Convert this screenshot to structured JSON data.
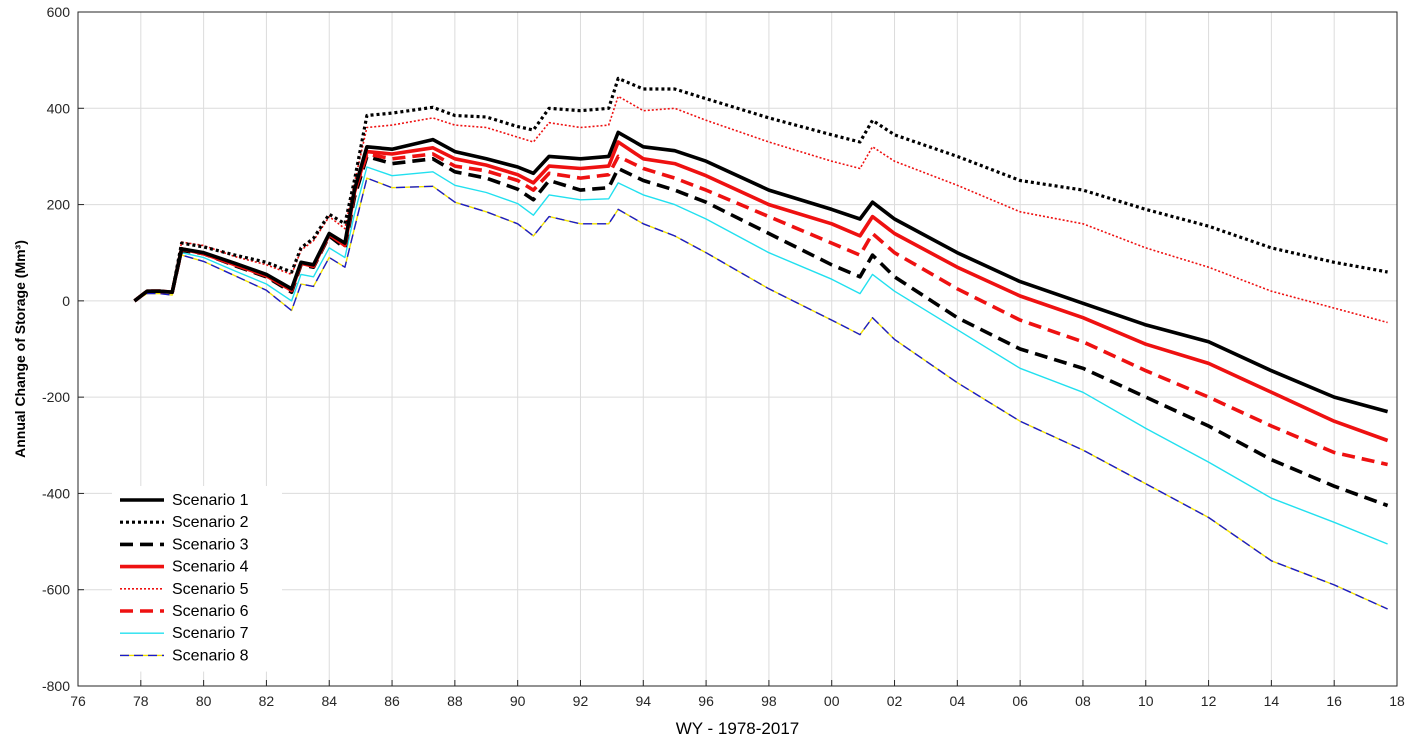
{
  "chart_data": {
    "type": "line",
    "title": "",
    "xlabel": "WY - 1978-2017",
    "ylabel": "Annual Change of Storage (Mm³)",
    "xlim": [
      1976,
      2018
    ],
    "ylim": [
      -800,
      600
    ],
    "grid": true,
    "legend_position": "bottom-left",
    "x_ticks": [
      {
        "value": 1976,
        "label": "76"
      },
      {
        "value": 1978,
        "label": "78"
      },
      {
        "value": 1980,
        "label": "80"
      },
      {
        "value": 1982,
        "label": "82"
      },
      {
        "value": 1984,
        "label": "84"
      },
      {
        "value": 1986,
        "label": "86"
      },
      {
        "value": 1988,
        "label": "88"
      },
      {
        "value": 1990,
        "label": "90"
      },
      {
        "value": 1992,
        "label": "92"
      },
      {
        "value": 1994,
        "label": "94"
      },
      {
        "value": 1996,
        "label": "96"
      },
      {
        "value": 1998,
        "label": "98"
      },
      {
        "value": 2000,
        "label": "00"
      },
      {
        "value": 2002,
        "label": "02"
      },
      {
        "value": 2004,
        "label": "04"
      },
      {
        "value": 2006,
        "label": "06"
      },
      {
        "value": 2008,
        "label": "08"
      },
      {
        "value": 2010,
        "label": "10"
      },
      {
        "value": 2012,
        "label": "12"
      },
      {
        "value": 2014,
        "label": "14"
      },
      {
        "value": 2016,
        "label": "16"
      },
      {
        "value": 2018,
        "label": "18"
      }
    ],
    "y_ticks": [
      {
        "value": 600,
        "label": "600"
      },
      {
        "value": 400,
        "label": "400"
      },
      {
        "value": 200,
        "label": "200"
      },
      {
        "value": 0,
        "label": "0"
      },
      {
        "value": -200,
        "label": "-200"
      },
      {
        "value": -400,
        "label": "-400"
      },
      {
        "value": -600,
        "label": "-600"
      },
      {
        "value": -800,
        "label": "-800"
      }
    ],
    "x": [
      1977.8,
      1978.2,
      1978.6,
      1979.0,
      1979.3,
      1980.0,
      1981.0,
      1982.0,
      1982.8,
      1983.1,
      1983.5,
      1984.0,
      1984.5,
      1984.8,
      1985.2,
      1986.0,
      1987.3,
      1988.0,
      1989.0,
      1990.0,
      1990.5,
      1991.0,
      1992.0,
      1992.9,
      1993.2,
      1994.0,
      1995.0,
      1996.0,
      1998.0,
      2000.0,
      2000.9,
      2001.3,
      2002.0,
      2004.0,
      2006.0,
      2008.0,
      2010.0,
      2012.0,
      2014.0,
      2016.0,
      2017.7
    ],
    "series": [
      {
        "name": "Scenario 1",
        "color": "#000000",
        "width": 3.6,
        "dash": "",
        "values": [
          0,
          20,
          20,
          18,
          108,
          100,
          78,
          55,
          25,
          80,
          75,
          140,
          120,
          230,
          320,
          315,
          335,
          310,
          295,
          278,
          265,
          300,
          295,
          300,
          350,
          320,
          312,
          290,
          230,
          190,
          170,
          205,
          170,
          100,
          40,
          -5,
          -50,
          -85,
          -145,
          -200,
          -230
        ]
      },
      {
        "name": "Scenario 2",
        "color": "#000000",
        "width": 3.2,
        "dash": "3,3",
        "values": [
          0,
          20,
          20,
          18,
          120,
          112,
          95,
          80,
          60,
          110,
          130,
          180,
          160,
          250,
          385,
          390,
          402,
          385,
          382,
          362,
          355,
          400,
          395,
          400,
          462,
          440,
          440,
          420,
          380,
          345,
          330,
          375,
          345,
          300,
          250,
          230,
          190,
          155,
          110,
          80,
          60
        ]
      },
      {
        "name": "Scenario 3",
        "color": "#000000",
        "width": 3.6,
        "dash": "13,7",
        "values": [
          0,
          20,
          20,
          18,
          105,
          98,
          73,
          50,
          18,
          75,
          70,
          135,
          110,
          215,
          300,
          285,
          295,
          268,
          255,
          232,
          210,
          250,
          230,
          235,
          275,
          250,
          230,
          205,
          140,
          75,
          50,
          95,
          50,
          -35,
          -100,
          -140,
          -200,
          -260,
          -330,
          -385,
          -425
        ]
      },
      {
        "name": "Scenario 4",
        "color": "#ee1111",
        "width": 3.6,
        "dash": "",
        "values": [
          0,
          20,
          20,
          18,
          108,
          98,
          75,
          52,
          22,
          78,
          72,
          138,
          115,
          225,
          310,
          305,
          318,
          295,
          282,
          262,
          245,
          280,
          275,
          280,
          330,
          295,
          285,
          260,
          200,
          160,
          135,
          175,
          140,
          70,
          10,
          -35,
          -90,
          -130,
          -190,
          -250,
          -290
        ]
      },
      {
        "name": "Scenario 5",
        "color": "#ee1111",
        "width": 1.6,
        "dash": "2,2",
        "values": [
          0,
          20,
          20,
          18,
          122,
          115,
          92,
          75,
          55,
          105,
          125,
          175,
          150,
          245,
          360,
          365,
          380,
          365,
          360,
          340,
          330,
          370,
          360,
          365,
          425,
          395,
          400,
          375,
          330,
          290,
          275,
          320,
          290,
          240,
          185,
          160,
          110,
          70,
          20,
          -15,
          -45
        ]
      },
      {
        "name": "Scenario 6",
        "color": "#ee1111",
        "width": 3.6,
        "dash": "13,7",
        "values": [
          0,
          20,
          20,
          18,
          108,
          98,
          75,
          52,
          22,
          78,
          72,
          138,
          115,
          225,
          305,
          295,
          305,
          280,
          270,
          250,
          230,
          265,
          255,
          262,
          300,
          275,
          255,
          230,
          175,
          120,
          95,
          140,
          100,
          25,
          -40,
          -85,
          -145,
          -200,
          -260,
          -315,
          -340
        ]
      },
      {
        "name": "Scenario 7",
        "color": "#22e0ef",
        "width": 1.4,
        "dash": "",
        "values": [
          0,
          18,
          18,
          15,
          100,
          90,
          62,
          35,
          0,
          55,
          50,
          110,
          90,
          180,
          278,
          260,
          268,
          240,
          225,
          202,
          178,
          220,
          210,
          212,
          245,
          220,
          200,
          170,
          100,
          45,
          15,
          55,
          20,
          -60,
          -140,
          -190,
          -265,
          -335,
          -410,
          -460,
          -505
        ]
      },
      {
        "name": "Scenario 8",
        "color": "#1a1acc",
        "width": 1.4,
        "dash": "9,5",
        "color2": "#f0e000",
        "values": [
          0,
          15,
          15,
          12,
          95,
          82,
          52,
          22,
          -20,
          35,
          30,
          90,
          70,
          150,
          255,
          235,
          238,
          205,
          185,
          160,
          135,
          175,
          160,
          160,
          190,
          160,
          135,
          100,
          25,
          -40,
          -70,
          -35,
          -80,
          -170,
          -250,
          -310,
          -380,
          -450,
          -540,
          -590,
          -640
        ]
      }
    ]
  }
}
